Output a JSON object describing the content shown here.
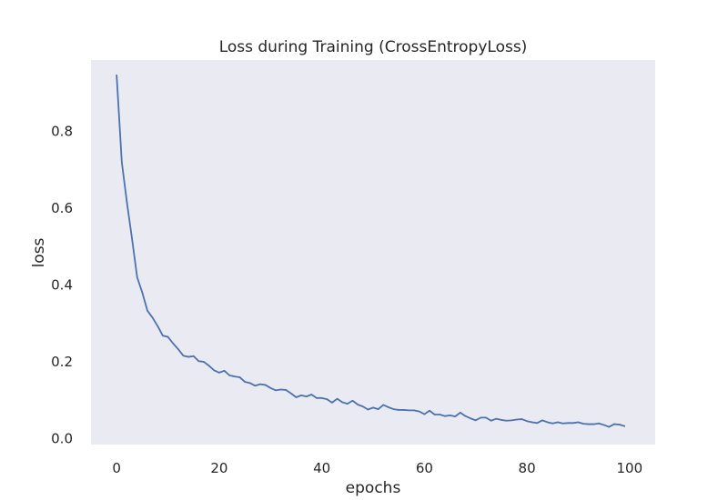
{
  "chart_data": {
    "type": "line",
    "title": "Loss during Training (CrossEntropyLoss)",
    "xlabel": "epochs",
    "ylabel": "loss",
    "xlim": [
      -5,
      105
    ],
    "ylim": [
      -0.015,
      0.985
    ],
    "x_ticks": [
      0,
      20,
      40,
      60,
      80,
      100
    ],
    "y_ticks": [
      0.0,
      0.2,
      0.4,
      0.6,
      0.8
    ],
    "x_tick_labels": [
      "0",
      "20",
      "40",
      "60",
      "80",
      "100"
    ],
    "y_tick_labels": [
      "0.0",
      "0.2",
      "0.4",
      "0.6",
      "0.8"
    ],
    "grid": false,
    "background_color": "#eaeaf2",
    "line_color": "#4c72b0",
    "series": [
      {
        "name": "",
        "x": [
          0,
          1,
          2,
          3,
          4,
          5,
          6,
          7,
          8,
          9,
          10,
          11,
          12,
          13,
          14,
          15,
          16,
          17,
          18,
          19,
          20,
          21,
          22,
          23,
          24,
          25,
          26,
          27,
          28,
          29,
          30,
          31,
          32,
          33,
          34,
          35,
          36,
          37,
          38,
          39,
          40,
          41,
          42,
          43,
          44,
          45,
          46,
          47,
          48,
          49,
          50,
          51,
          52,
          53,
          54,
          55,
          56,
          57,
          58,
          59,
          60,
          61,
          62,
          63,
          64,
          65,
          66,
          67,
          68,
          69,
          70,
          71,
          72,
          73,
          74,
          75,
          76,
          77,
          78,
          79,
          80,
          81,
          82,
          83,
          84,
          85,
          86,
          87,
          88,
          89,
          90,
          91,
          92,
          93,
          94,
          95,
          96,
          97,
          98,
          99
        ],
        "y": [
          0.945,
          0.72,
          0.615,
          0.52,
          0.42,
          0.38,
          0.333,
          0.315,
          0.293,
          0.268,
          0.265,
          0.248,
          0.233,
          0.216,
          0.213,
          0.215,
          0.202,
          0.2,
          0.19,
          0.178,
          0.172,
          0.177,
          0.165,
          0.162,
          0.16,
          0.148,
          0.145,
          0.138,
          0.142,
          0.14,
          0.132,
          0.126,
          0.128,
          0.127,
          0.118,
          0.108,
          0.113,
          0.11,
          0.115,
          0.106,
          0.106,
          0.103,
          0.094,
          0.104,
          0.095,
          0.091,
          0.099,
          0.089,
          0.084,
          0.076,
          0.081,
          0.077,
          0.088,
          0.082,
          0.077,
          0.075,
          0.075,
          0.074,
          0.074,
          0.071,
          0.064,
          0.073,
          0.063,
          0.063,
          0.059,
          0.061,
          0.058,
          0.068,
          0.059,
          0.053,
          0.048,
          0.055,
          0.055,
          0.047,
          0.052,
          0.049,
          0.047,
          0.048,
          0.05,
          0.051,
          0.046,
          0.043,
          0.041,
          0.048,
          0.043,
          0.04,
          0.043,
          0.04,
          0.041,
          0.041,
          0.043,
          0.039,
          0.038,
          0.038,
          0.04,
          0.036,
          0.031,
          0.038,
          0.037,
          0.033
        ]
      }
    ]
  }
}
